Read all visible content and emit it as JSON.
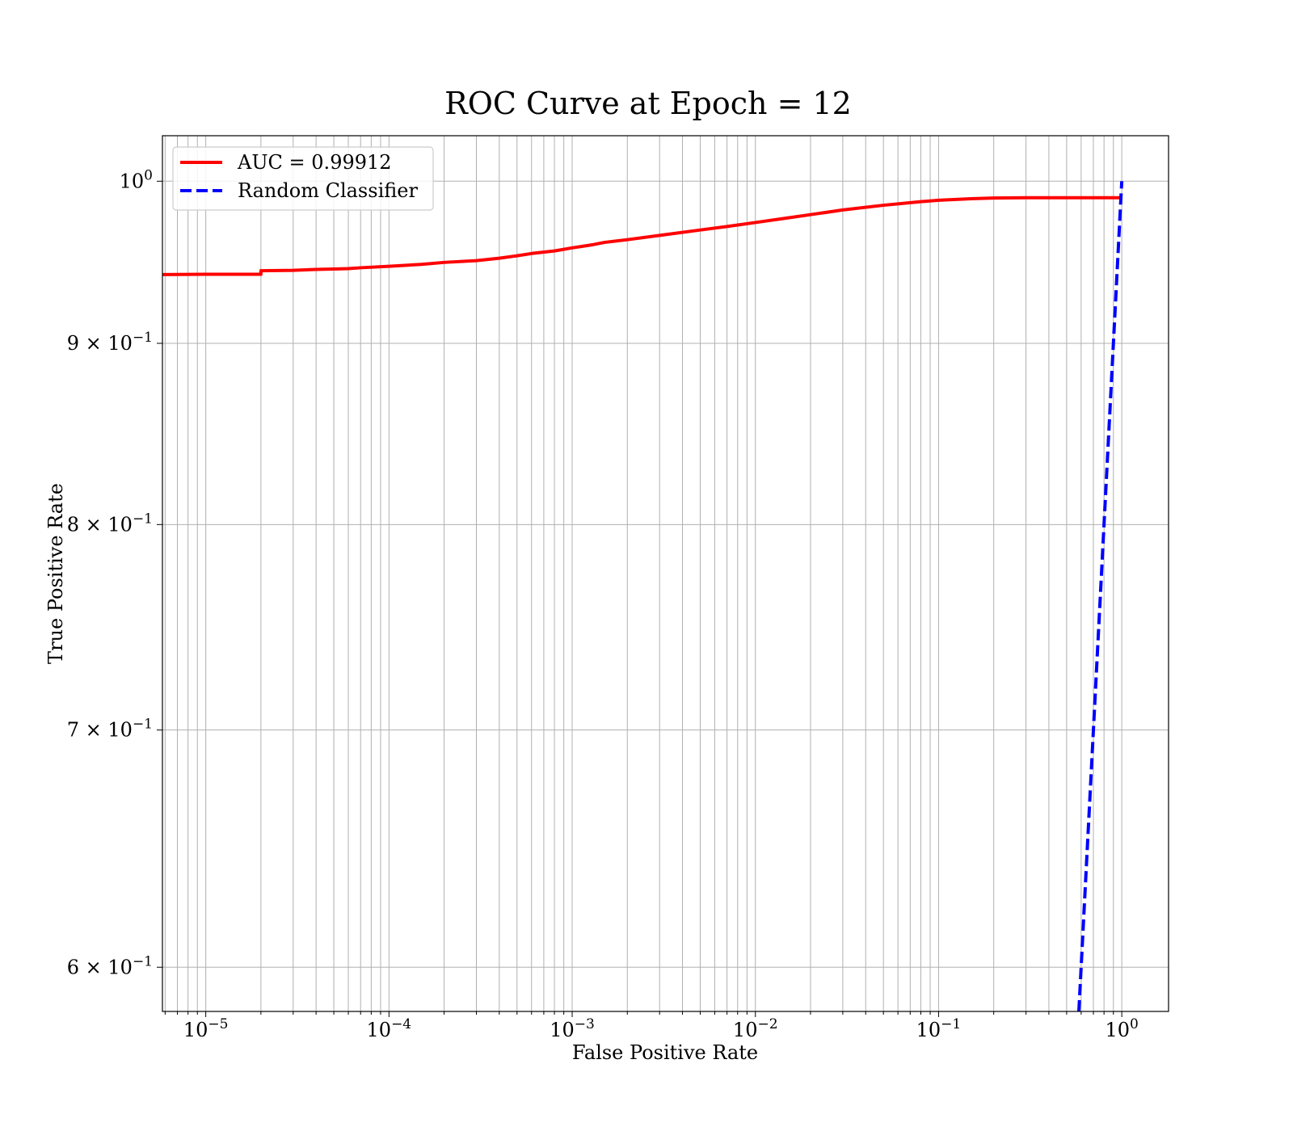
{
  "chart_data": {
    "type": "line",
    "title": "ROC Curve at Epoch = 12",
    "xlabel": "False Positive Rate",
    "ylabel": "True Positive Rate",
    "xscale": "log",
    "yscale": "log",
    "xlim": [
      5.8e-06,
      1.8
    ],
    "ylim": [
      0.583,
      1.03
    ],
    "grid": "major and minor",
    "legend_position": "top-left",
    "x_ticks": [
      {
        "value": 1e-05,
        "base": "10",
        "exp": "−5"
      },
      {
        "value": 0.0001,
        "base": "10",
        "exp": "−4"
      },
      {
        "value": 0.001,
        "base": "10",
        "exp": "−3"
      },
      {
        "value": 0.01,
        "base": "10",
        "exp": "−2"
      },
      {
        "value": 0.1,
        "base": "10",
        "exp": "−1"
      },
      {
        "value": 1,
        "base": "10",
        "exp": "0"
      }
    ],
    "y_ticks": [
      {
        "value": 1.0,
        "mant": "",
        "base": "10",
        "exp": "0"
      },
      {
        "value": 0.9,
        "mant": "9 × ",
        "base": "10",
        "exp": "−1"
      },
      {
        "value": 0.8,
        "mant": "8 × ",
        "base": "10",
        "exp": "−1"
      },
      {
        "value": 0.7,
        "mant": "7 × ",
        "base": "10",
        "exp": "−1"
      },
      {
        "value": 0.6,
        "mant": "6 × ",
        "base": "10",
        "exp": "−1"
      }
    ],
    "series": [
      {
        "name": "AUC = 0.99912",
        "color": "#ff0000",
        "style": "solid",
        "x": [
          5.8e-06,
          1e-05,
          2e-05,
          2e-05,
          3e-05,
          4e-05,
          5e-05,
          6e-05,
          7e-05,
          0.0001,
          0.00015,
          0.0002,
          0.0003,
          0.0004,
          0.0005,
          0.0006,
          0.0008,
          0.001,
          0.0013,
          0.0015,
          0.002,
          0.003,
          0.005,
          0.007,
          0.01,
          0.015,
          0.02,
          0.03,
          0.05,
          0.08,
          0.1,
          0.15,
          0.2,
          0.3,
          0.5,
          1.0
        ],
        "y": [
          0.9411,
          0.9413,
          0.9413,
          0.9435,
          0.9437,
          0.9443,
          0.9445,
          0.9448,
          0.9453,
          0.9462,
          0.9474,
          0.9486,
          0.9497,
          0.9512,
          0.9527,
          0.9541,
          0.9557,
          0.9576,
          0.9596,
          0.961,
          0.9627,
          0.9654,
          0.9688,
          0.971,
          0.9735,
          0.9764,
          0.9785,
          0.9815,
          0.9845,
          0.9868,
          0.9877,
          0.9887,
          0.9891,
          0.9893,
          0.9893,
          0.9893
        ]
      },
      {
        "name": "Random Classifier",
        "color": "#0000ff",
        "style": "dashed",
        "x": [
          0.583,
          1.0
        ],
        "y": [
          0.583,
          1.0
        ]
      }
    ]
  }
}
